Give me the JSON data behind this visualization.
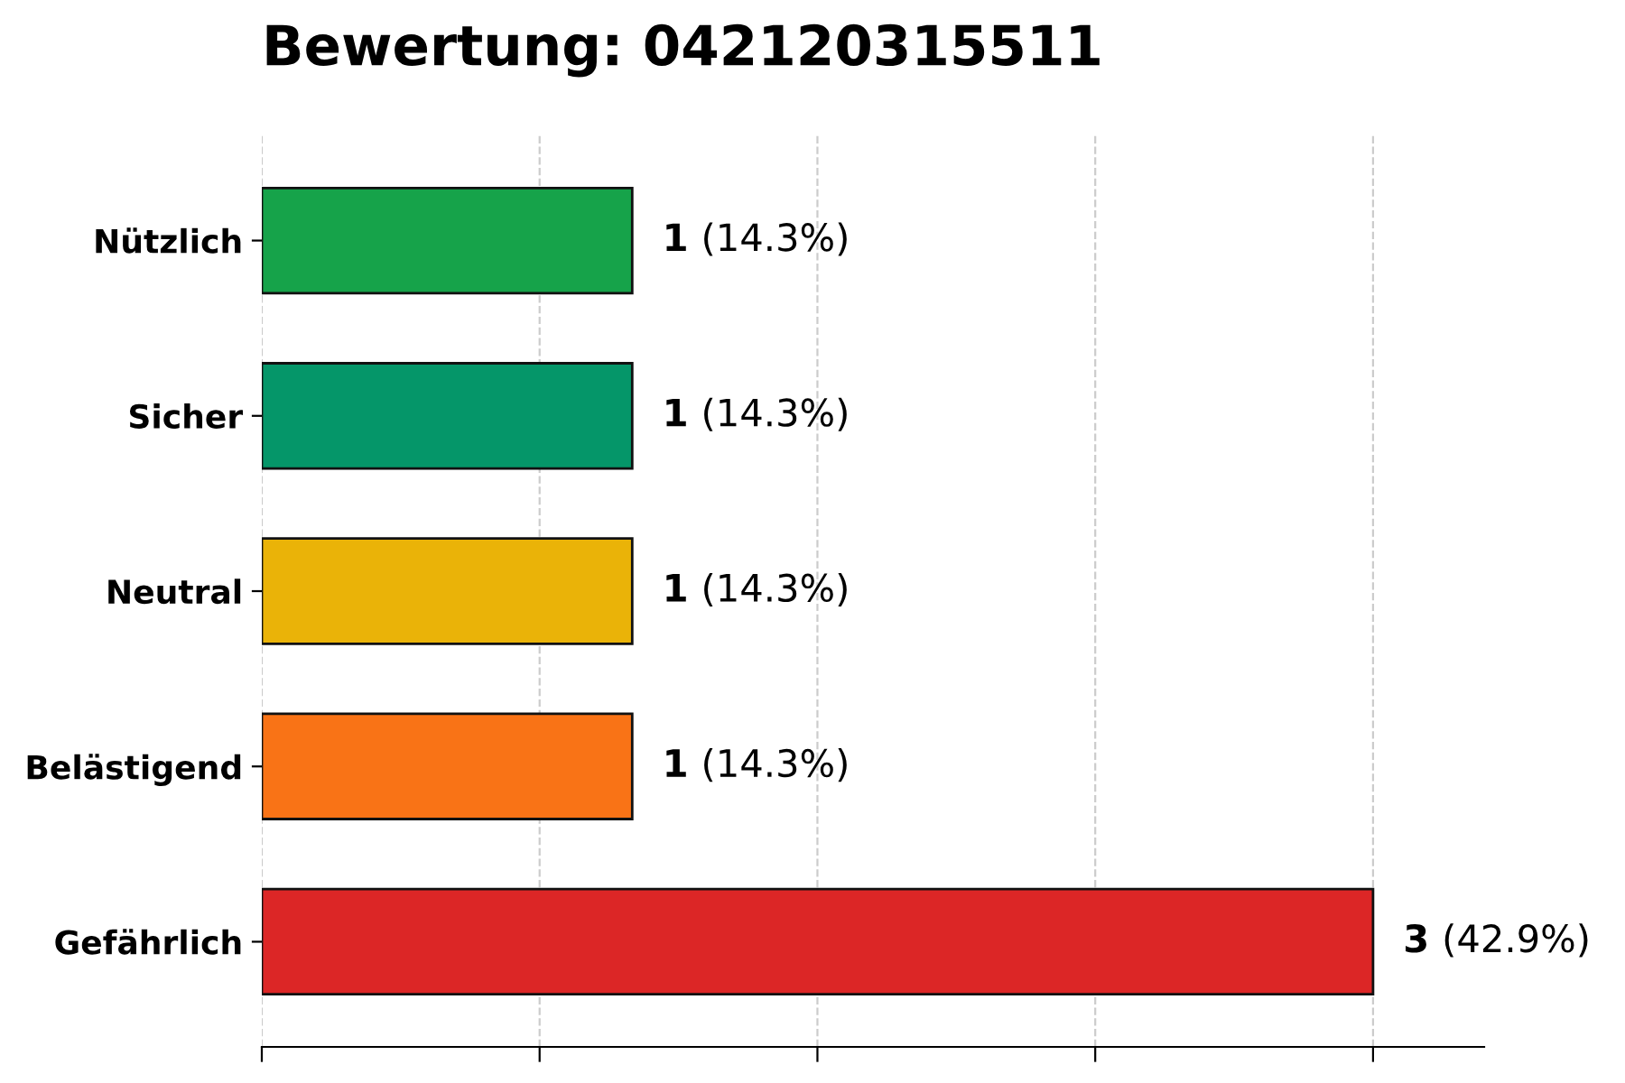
{
  "chart_data": {
    "type": "bar",
    "orientation": "horizontal",
    "title": "Bewertung: 042120315511",
    "categories": [
      "Nützlich",
      "Sicher",
      "Neutral",
      "Belästigend",
      "Gefährlich"
    ],
    "values": [
      1,
      1,
      1,
      1,
      3
    ],
    "colors": [
      "#16a34a",
      "#059669",
      "#eab308",
      "#f97316",
      "#dc2626"
    ],
    "value_labels": [
      "1 (14.3%)",
      "1 (14.3%)",
      "1 (14.3%)",
      "1 (14.3%)",
      "3 (42.9%)"
    ],
    "xlim": [
      0,
      3.3
    ],
    "xticks": [
      {
        "value": 0,
        "label": null
      },
      {
        "value": 0.75,
        "label": null
      },
      {
        "value": 1.5,
        "label": null
      },
      {
        "value": 2.25,
        "label": null
      },
      {
        "value": 3,
        "label": null
      }
    ],
    "tick_labels": "y",
    "grid": "x"
  }
}
